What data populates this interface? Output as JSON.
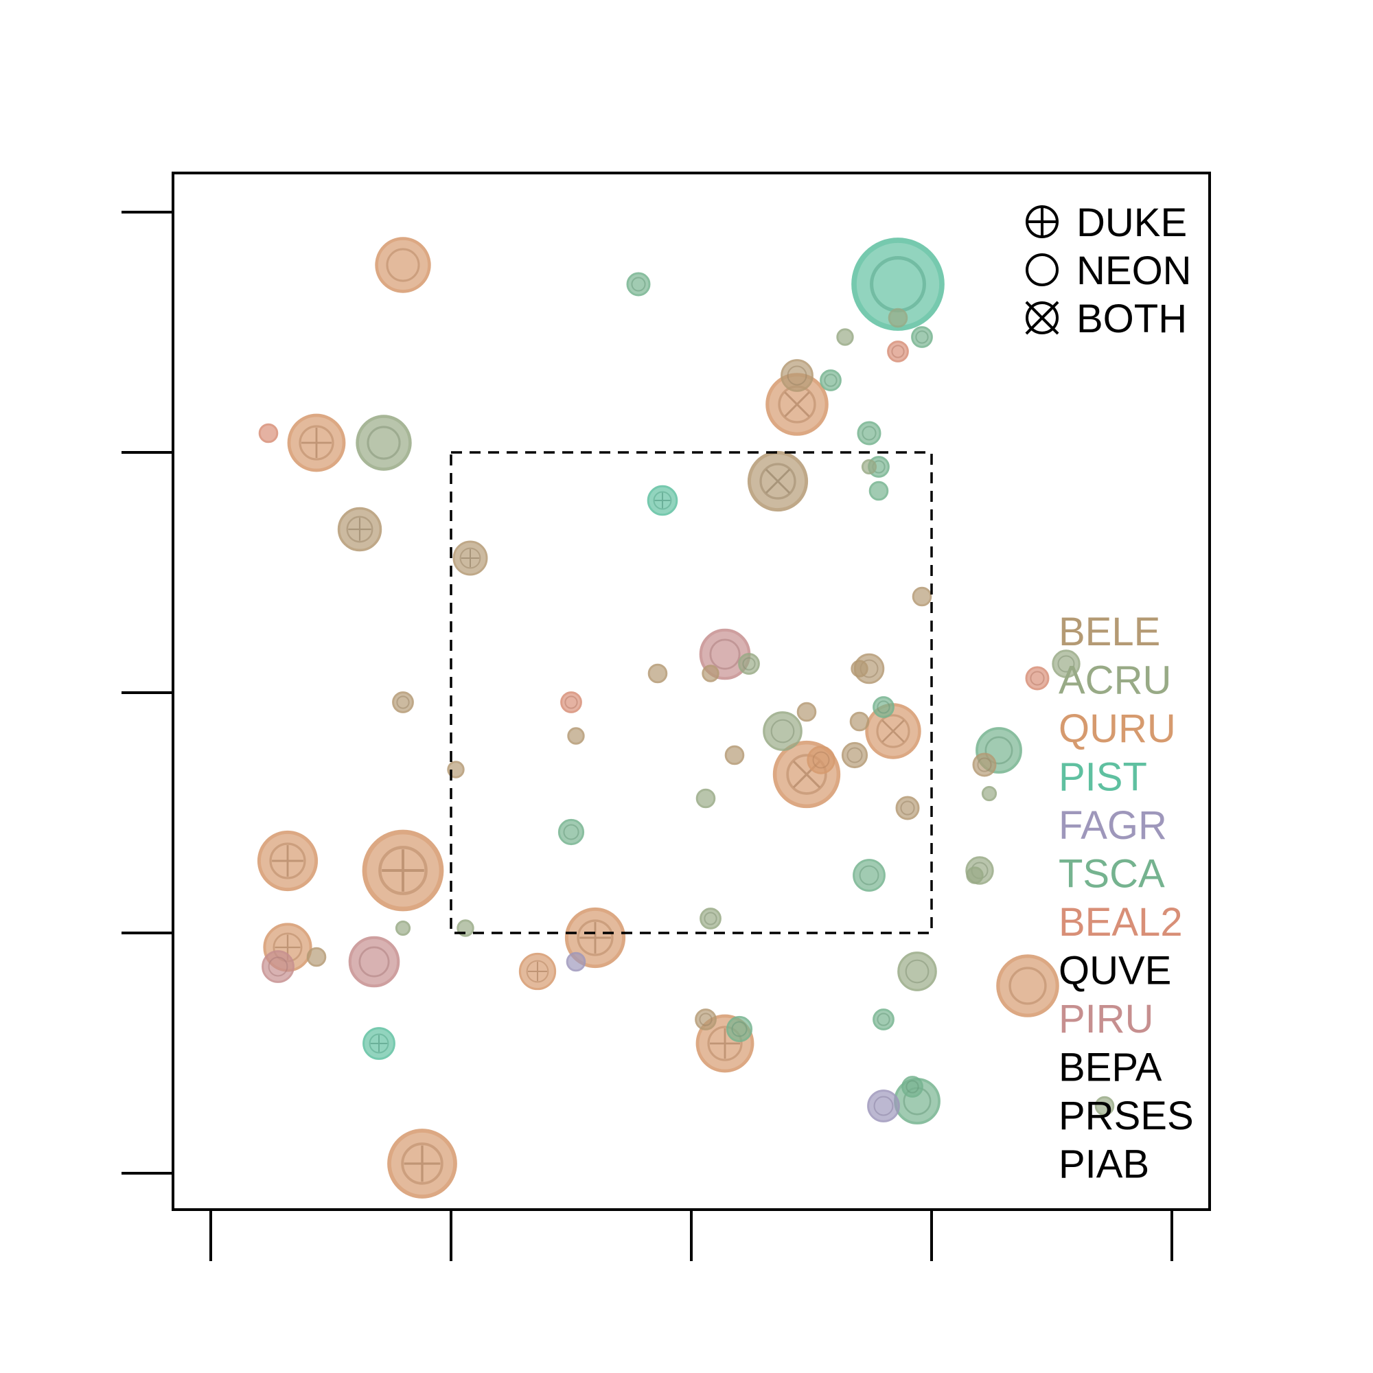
{
  "chart_data": {
    "type": "scatter",
    "title": "",
    "xlabel": "",
    "ylabel": "",
    "xlim": [
      0,
      20
    ],
    "ylim": [
      0,
      20
    ],
    "grid": false,
    "x_ticks": [
      1,
      6,
      11,
      16,
      21
    ],
    "y_ticks": [
      1,
      6,
      11,
      16,
      21
    ],
    "x_tick_labels": [],
    "y_tick_labels": [],
    "region": {
      "x": [
        6,
        16
      ],
      "y": [
        6,
        16
      ],
      "line_style": "dashed"
    },
    "shape_legend": {
      "placement": "top-right",
      "entries": [
        {
          "label": "DUKE",
          "symbol": "plus"
        },
        {
          "label": "NEON",
          "symbol": "circle"
        },
        {
          "label": "BOTH",
          "symbol": "cross"
        }
      ]
    },
    "species_legend": {
      "placement": "right",
      "entries": [
        {
          "label": "BELE",
          "color": "#b49a74"
        },
        {
          "label": "ACRU",
          "color": "#98aa86"
        },
        {
          "label": "QURU",
          "color": "#d69a6e"
        },
        {
          "label": "PIST",
          "color": "#5fc0a0"
        },
        {
          "label": "FAGR",
          "color": "#9e97bb"
        },
        {
          "label": "TSCA",
          "color": "#75b38f"
        },
        {
          "label": "BEAL2",
          "color": "#d88f77"
        },
        {
          "label": "QUVE",
          "color": "#000000"
        },
        {
          "label": "PIRU",
          "color": "#c68f8f"
        },
        {
          "label": "BEPA",
          "color": "#000000"
        },
        {
          "label": "PRSES",
          "color": "#000000"
        },
        {
          "label": "PIAB",
          "color": "#000000"
        }
      ]
    },
    "points": [
      {
        "x": 4.0,
        "y": 18.9,
        "species": "QURU",
        "source": "NEON",
        "size": 1.2
      },
      {
        "x": 8.9,
        "y": 18.5,
        "species": "TSCA",
        "source": "NEON",
        "size": 0.5
      },
      {
        "x": 14.3,
        "y": 18.5,
        "species": "PIST",
        "source": "NEON",
        "size": 2.0
      },
      {
        "x": 14.3,
        "y": 17.8,
        "species": "ACRU",
        "source": "NEON",
        "size": 0.4
      },
      {
        "x": 14.8,
        "y": 17.4,
        "species": "TSCA",
        "source": "NEON",
        "size": 0.45
      },
      {
        "x": 13.2,
        "y": 17.4,
        "species": "ACRU",
        "source": "NEON",
        "size": 0.35
      },
      {
        "x": 14.3,
        "y": 17.1,
        "species": "BEAL2",
        "source": "NEON",
        "size": 0.45
      },
      {
        "x": 12.2,
        "y": 16.6,
        "species": "BELE",
        "source": "NEON",
        "size": 0.7
      },
      {
        "x": 12.9,
        "y": 16.5,
        "species": "TSCA",
        "source": "NEON",
        "size": 0.45
      },
      {
        "x": 12.2,
        "y": 16.0,
        "species": "QURU",
        "source": "BOTH",
        "size": 1.35
      },
      {
        "x": 13.7,
        "y": 15.4,
        "species": "TSCA",
        "source": "NEON",
        "size": 0.5
      },
      {
        "x": 13.7,
        "y": 14.7,
        "species": "ACRU",
        "source": "NEON",
        "size": 0.3
      },
      {
        "x": 13.9,
        "y": 14.7,
        "species": "TSCA",
        "source": "NEON",
        "size": 0.45
      },
      {
        "x": 13.9,
        "y": 14.2,
        "species": "TSCA",
        "source": "NEON",
        "size": 0.4
      },
      {
        "x": 11.8,
        "y": 14.4,
        "species": "BELE",
        "source": "BOTH",
        "size": 1.3
      },
      {
        "x": 9.4,
        "y": 14.0,
        "species": "PIST",
        "source": "DUKE",
        "size": 0.65
      },
      {
        "x": 1.2,
        "y": 15.4,
        "species": "BEAL2",
        "source": "NEON",
        "size": 0.4
      },
      {
        "x": 2.2,
        "y": 15.2,
        "species": "QURU",
        "source": "DUKE",
        "size": 1.25
      },
      {
        "x": 3.6,
        "y": 15.2,
        "species": "ACRU",
        "source": "NEON",
        "size": 1.2
      },
      {
        "x": 3.1,
        "y": 13.4,
        "species": "BELE",
        "source": "DUKE",
        "size": 0.95
      },
      {
        "x": 5.4,
        "y": 12.8,
        "species": "BELE",
        "source": "DUKE",
        "size": 0.75
      },
      {
        "x": 14.8,
        "y": 12.0,
        "species": "BELE",
        "source": "NEON",
        "size": 0.4
      },
      {
        "x": 10.7,
        "y": 10.8,
        "species": "PIRU",
        "source": "NEON",
        "size": 1.1
      },
      {
        "x": 11.2,
        "y": 10.6,
        "species": "ACRU",
        "source": "NEON",
        "size": 0.45
      },
      {
        "x": 9.3,
        "y": 10.4,
        "species": "BELE",
        "source": "NEON",
        "size": 0.4
      },
      {
        "x": 10.4,
        "y": 10.4,
        "species": "BELE",
        "source": "NEON",
        "size": 0.35
      },
      {
        "x": 13.7,
        "y": 10.5,
        "species": "BELE",
        "source": "NEON",
        "size": 0.65
      },
      {
        "x": 13.5,
        "y": 10.5,
        "species": "BELE",
        "source": "NEON",
        "size": 0.35
      },
      {
        "x": 17.8,
        "y": 10.6,
        "species": "ACRU",
        "source": "NEON",
        "size": 0.6
      },
      {
        "x": 17.2,
        "y": 10.3,
        "species": "BEAL2",
        "source": "NEON",
        "size": 0.5
      },
      {
        "x": 7.5,
        "y": 9.8,
        "species": "BEAL2",
        "source": "NEON",
        "size": 0.45
      },
      {
        "x": 7.6,
        "y": 9.1,
        "species": "BELE",
        "source": "NEON",
        "size": 0.35
      },
      {
        "x": 4.0,
        "y": 9.8,
        "species": "BELE",
        "source": "NEON",
        "size": 0.45
      },
      {
        "x": 12.4,
        "y": 9.6,
        "species": "BELE",
        "source": "NEON",
        "size": 0.4
      },
      {
        "x": 13.5,
        "y": 9.4,
        "species": "BELE",
        "source": "NEON",
        "size": 0.4
      },
      {
        "x": 14.0,
        "y": 9.7,
        "species": "TSCA",
        "source": "NEON",
        "size": 0.45
      },
      {
        "x": 11.9,
        "y": 9.2,
        "species": "ACRU",
        "source": "NEON",
        "size": 0.85
      },
      {
        "x": 14.2,
        "y": 9.2,
        "species": "QURU",
        "source": "BOTH",
        "size": 1.2
      },
      {
        "x": 13.4,
        "y": 8.7,
        "species": "BELE",
        "source": "NEON",
        "size": 0.55
      },
      {
        "x": 10.9,
        "y": 8.7,
        "species": "BELE",
        "source": "NEON",
        "size": 0.4
      },
      {
        "x": 16.4,
        "y": 8.8,
        "species": "TSCA",
        "source": "NEON",
        "size": 1.0
      },
      {
        "x": 16.1,
        "y": 8.5,
        "species": "BELE",
        "source": "NEON",
        "size": 0.5
      },
      {
        "x": 12.4,
        "y": 8.3,
        "species": "QURU",
        "source": "BOTH",
        "size": 1.45
      },
      {
        "x": 12.7,
        "y": 8.6,
        "species": "QURU",
        "source": "NEON",
        "size": 0.6
      },
      {
        "x": 5.1,
        "y": 8.4,
        "species": "BELE",
        "source": "NEON",
        "size": 0.35
      },
      {
        "x": 10.3,
        "y": 7.8,
        "species": "ACRU",
        "source": "NEON",
        "size": 0.4
      },
      {
        "x": 14.5,
        "y": 7.6,
        "species": "BELE",
        "source": "NEON",
        "size": 0.5
      },
      {
        "x": 16.2,
        "y": 7.9,
        "species": "ACRU",
        "source": "NEON",
        "size": 0.3
      },
      {
        "x": 7.5,
        "y": 7.1,
        "species": "TSCA",
        "source": "NEON",
        "size": 0.55
      },
      {
        "x": 16.0,
        "y": 6.3,
        "species": "ACRU",
        "source": "NEON",
        "size": 0.6
      },
      {
        "x": 15.9,
        "y": 6.2,
        "species": "ACRU",
        "source": "NEON",
        "size": 0.35
      },
      {
        "x": 13.7,
        "y": 6.2,
        "species": "TSCA",
        "source": "NEON",
        "size": 0.7
      },
      {
        "x": 1.6,
        "y": 6.5,
        "species": "QURU",
        "source": "DUKE",
        "size": 1.3
      },
      {
        "x": 4.0,
        "y": 6.3,
        "species": "QURU",
        "source": "DUKE",
        "size": 1.75
      },
      {
        "x": 4.0,
        "y": 5.1,
        "species": "ACRU",
        "source": "NEON",
        "size": 0.3
      },
      {
        "x": 5.3,
        "y": 5.1,
        "species": "ACRU",
        "source": "NEON",
        "size": 0.35
      },
      {
        "x": 10.4,
        "y": 5.3,
        "species": "ACRU",
        "source": "NEON",
        "size": 0.45
      },
      {
        "x": 8.0,
        "y": 4.9,
        "species": "QURU",
        "source": "DUKE",
        "size": 1.3
      },
      {
        "x": 1.6,
        "y": 4.7,
        "species": "QURU",
        "source": "DUKE",
        "size": 1.05
      },
      {
        "x": 2.2,
        "y": 4.5,
        "species": "BELE",
        "source": "NEON",
        "size": 0.4
      },
      {
        "x": 1.4,
        "y": 4.3,
        "species": "PIRU",
        "source": "NEON",
        "size": 0.7
      },
      {
        "x": 3.4,
        "y": 4.4,
        "species": "PIRU",
        "source": "NEON",
        "size": 1.1
      },
      {
        "x": 7.6,
        "y": 4.4,
        "species": "FAGR",
        "source": "NEON",
        "size": 0.4
      },
      {
        "x": 6.8,
        "y": 4.2,
        "species": "QURU",
        "source": "DUKE",
        "size": 0.8
      },
      {
        "x": 14.7,
        "y": 4.2,
        "species": "ACRU",
        "source": "NEON",
        "size": 0.85
      },
      {
        "x": 17.0,
        "y": 3.9,
        "species": "QURU",
        "source": "NEON",
        "size": 1.35
      },
      {
        "x": 10.3,
        "y": 3.2,
        "species": "BELE",
        "source": "NEON",
        "size": 0.45
      },
      {
        "x": 11.0,
        "y": 3.0,
        "species": "TSCA",
        "source": "NEON",
        "size": 0.55
      },
      {
        "x": 10.7,
        "y": 2.7,
        "species": "QURU",
        "source": "DUKE",
        "size": 1.25
      },
      {
        "x": 14.0,
        "y": 3.2,
        "species": "TSCA",
        "source": "NEON",
        "size": 0.45
      },
      {
        "x": 3.5,
        "y": 2.7,
        "species": "PIST",
        "source": "DUKE",
        "size": 0.7
      },
      {
        "x": 14.6,
        "y": 1.8,
        "species": "TSCA",
        "source": "NEON",
        "size": 0.45
      },
      {
        "x": 14.7,
        "y": 1.5,
        "species": "TSCA",
        "source": "NEON",
        "size": 1.0
      },
      {
        "x": 14.0,
        "y": 1.4,
        "species": "FAGR",
        "source": "NEON",
        "size": 0.7
      },
      {
        "x": 18.6,
        "y": 1.4,
        "species": "ACRU",
        "source": "NEON",
        "size": 0.4
      },
      {
        "x": 4.4,
        "y": 0.2,
        "species": "QURU",
        "source": "DUKE",
        "size": 1.5
      }
    ]
  }
}
